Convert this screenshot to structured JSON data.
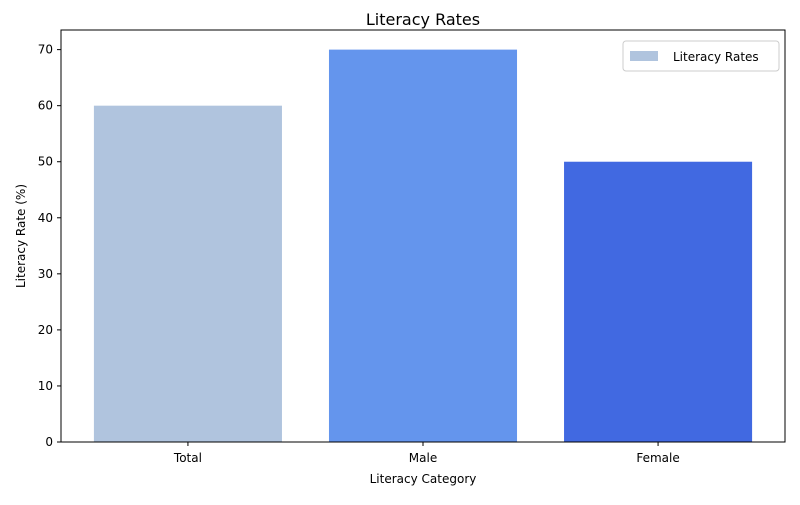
{
  "chart_data": {
    "type": "bar",
    "title": "Literacy Rates",
    "xlabel": "Literacy Category",
    "ylabel": "Literacy Rate (%)",
    "categories": [
      "Total",
      "Male",
      "Female"
    ],
    "series": [
      {
        "name": "Literacy Rates",
        "values": [
          60,
          70,
          50
        ]
      }
    ],
    "colors": [
      "#b0c4de",
      "#6495ed",
      "#4169e1"
    ],
    "ylim": [
      0,
      73.5
    ],
    "yticks": [
      0,
      10,
      20,
      30,
      40,
      50,
      60,
      70
    ],
    "grid": false,
    "legend": {
      "placement": "top-right",
      "entries": [
        "Literacy Rates"
      ]
    }
  }
}
